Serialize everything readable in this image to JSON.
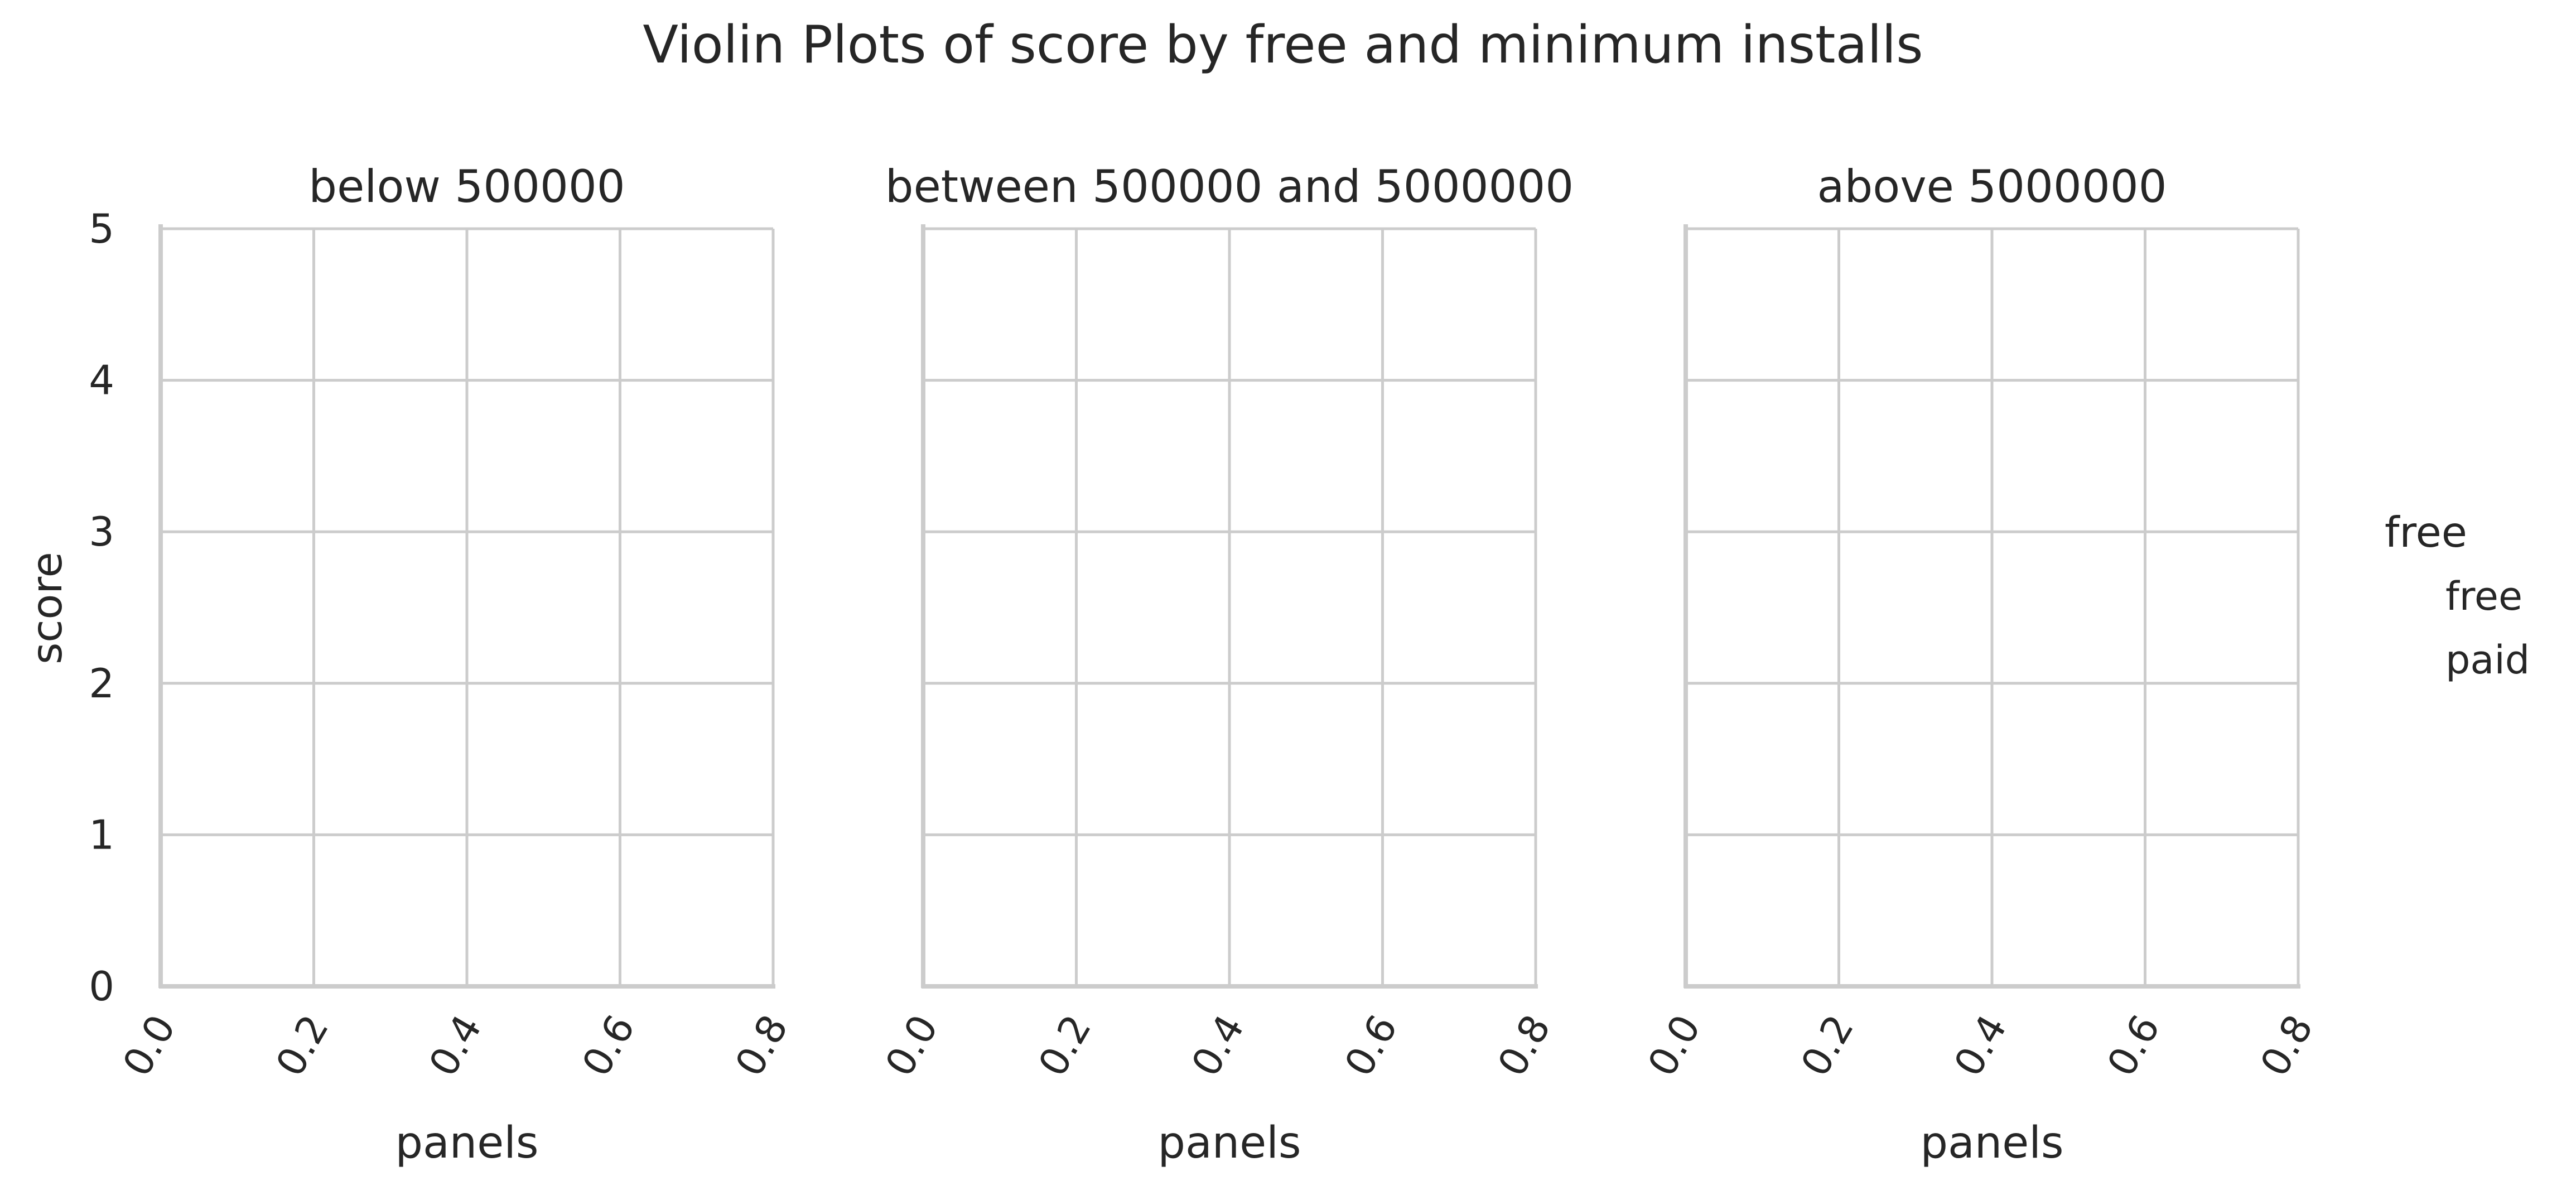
{
  "chart_data": {
    "type": "violin",
    "title": "Violin Plots of score by free and minimum installs",
    "panels": [
      {
        "title": "below 500000",
        "xlabel": "panels"
      },
      {
        "title": "between 500000 and 5000000",
        "xlabel": "panels"
      },
      {
        "title": "above 5000000",
        "xlabel": "panels"
      }
    ],
    "ylabel": "score",
    "ylim": [
      0,
      5
    ],
    "yticks": [
      "0",
      "1",
      "2",
      "3",
      "4",
      "5"
    ],
    "xlim": [
      0,
      0.8
    ],
    "xticks": [
      "0.0",
      "0.2",
      "0.4",
      "0.6",
      "0.8"
    ],
    "grid": true,
    "legend": {
      "title": "free",
      "placement": "right",
      "entries": [
        "free",
        "paid"
      ]
    },
    "series": [],
    "colors": {
      "grid": "#cccccc",
      "spine": "#cccccc",
      "text": "#262626",
      "background": "#ffffff"
    }
  }
}
